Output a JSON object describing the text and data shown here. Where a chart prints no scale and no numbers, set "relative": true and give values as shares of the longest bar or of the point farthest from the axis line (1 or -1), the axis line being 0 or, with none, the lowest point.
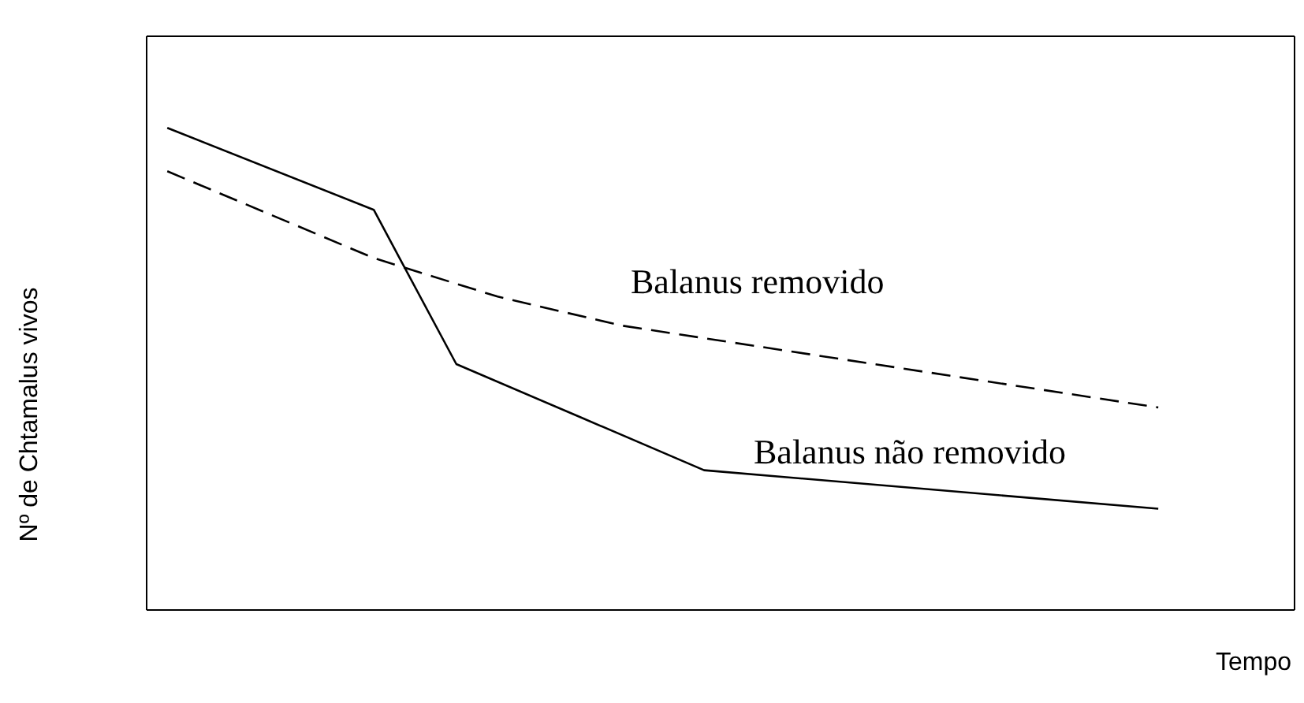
{
  "chart_data": {
    "type": "line",
    "relative": true,
    "xlabel": "Tempo",
    "ylabel": "Nº de Chtamalus vivos",
    "categories": [
      null,
      null,
      null,
      null,
      null,
      null,
      null,
      null,
      null,
      null,
      null,
      null,
      null,
      null,
      null,
      null,
      null,
      null,
      null,
      null,
      null,
      null,
      null,
      null,
      null
    ],
    "series": [
      {
        "name": "Balanus removido",
        "color": "#000000",
        "line_style": "dashed",
        "values": [
          0.91,
          null,
          null,
          null,
          null,
          0.73,
          null,
          null,
          0.65,
          null,
          null,
          0.59,
          null,
          null,
          null,
          null,
          null,
          null,
          null,
          null,
          null,
          null,
          null,
          null,
          0.42
        ]
      },
      {
        "name": "Balanus não removido",
        "color": "#000000",
        "line_style": "solid",
        "values": [
          1,
          null,
          null,
          null,
          null,
          0.83,
          null,
          0.51,
          null,
          null,
          0.4,
          null,
          null,
          0.29,
          null,
          null,
          null,
          null,
          null,
          null,
          null,
          null,
          null,
          null,
          0.21
        ]
      }
    ],
    "legend": false,
    "marker": "none"
  }
}
